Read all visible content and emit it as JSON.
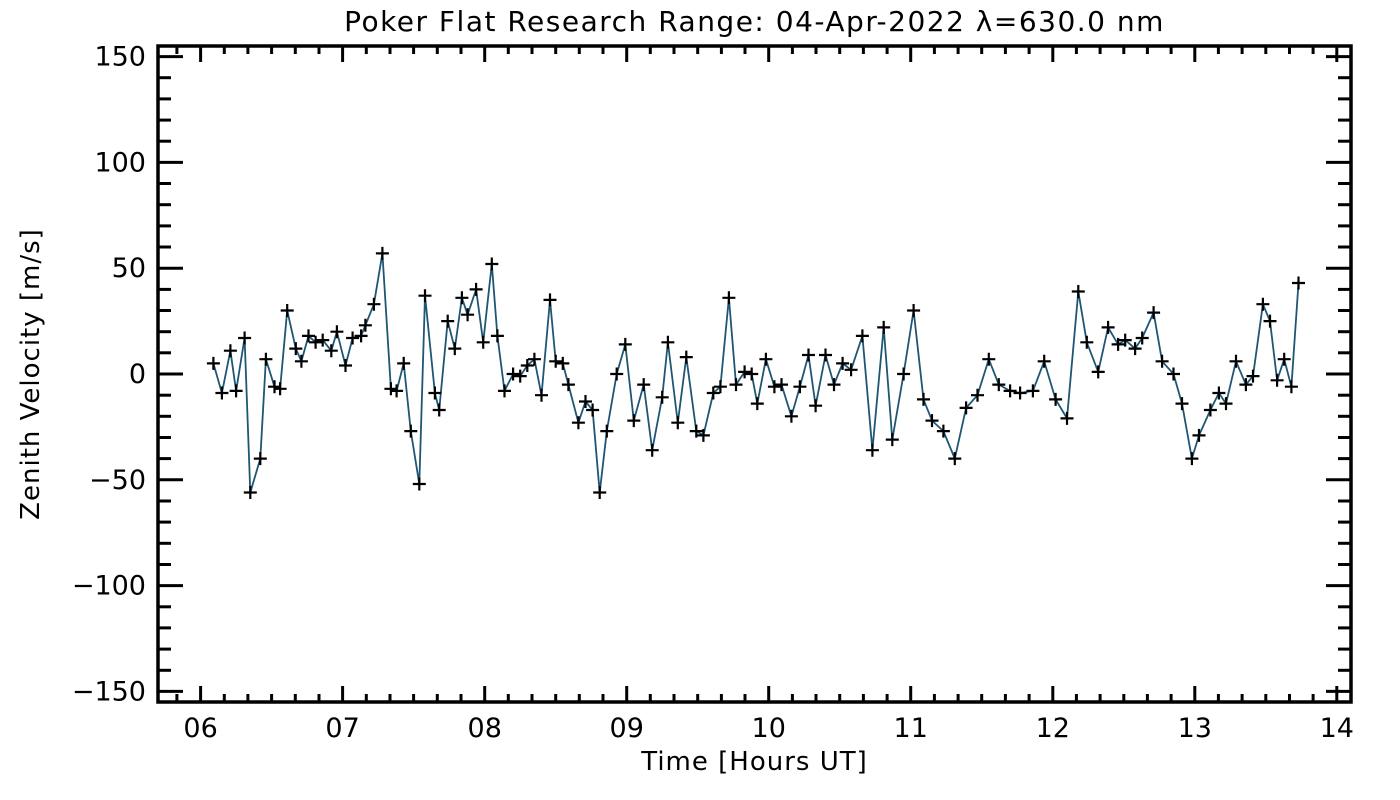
{
  "window": {
    "background": "#ffffff"
  },
  "chart_data": {
    "type": "line",
    "title": "Poker Flat Research Range: 04-Apr-2022 λ=630.0 nm",
    "xlabel": "Time [Hours UT]",
    "ylabel": "Zenith Velocity [m/s]",
    "xlim": [
      5.7,
      14.1
    ],
    "ylim": [
      -155,
      155
    ],
    "grid": false,
    "legend": "none",
    "marker": "plus",
    "x_ticks": {
      "values": [
        6,
        7,
        8,
        9,
        10,
        11,
        12,
        13,
        14
      ],
      "labels": [
        "06",
        "07",
        "08",
        "09",
        "10",
        "11",
        "12",
        "13",
        "14"
      ],
      "minor_per_hour": 6
    },
    "y_ticks": {
      "values": [
        150,
        100,
        50,
        0,
        -50,
        -100,
        -150
      ],
      "labels": [
        "150",
        "100",
        "50",
        "0",
        "−50",
        "−100",
        "−150"
      ],
      "minor_step": 10
    },
    "colors": {
      "line": "#1f5673",
      "marker": "#000000",
      "axis": "#000000",
      "text": "#000000",
      "background": "#ffffff"
    },
    "series": [
      {
        "name": "zenith-velocity",
        "x": [
          6.09,
          6.15,
          6.21,
          6.25,
          6.31,
          6.35,
          6.42,
          6.46,
          6.52,
          6.56,
          6.61,
          6.67,
          6.71,
          6.76,
          6.81,
          6.86,
          6.92,
          6.96,
          7.02,
          7.07,
          7.13,
          7.16,
          7.22,
          7.28,
          7.34,
          7.38,
          7.43,
          7.48,
          7.54,
          7.58,
          7.65,
          7.68,
          7.74,
          7.79,
          7.84,
          7.88,
          7.94,
          7.99,
          8.05,
          8.09,
          8.14,
          8.2,
          8.25,
          8.3,
          8.35,
          8.4,
          8.46,
          8.5,
          8.55,
          8.59,
          8.66,
          8.71,
          8.76,
          8.81,
          8.86,
          8.93,
          8.99,
          9.05,
          9.12,
          9.18,
          9.25,
          9.29,
          9.36,
          9.42,
          9.49,
          9.54,
          9.61,
          9.66,
          9.72,
          9.77,
          9.83,
          9.88,
          9.92,
          9.98,
          10.04,
          10.09,
          10.16,
          10.22,
          10.28,
          10.33,
          10.4,
          10.46,
          10.52,
          10.58,
          10.66,
          10.73,
          10.81,
          10.87,
          10.95,
          11.02,
          11.09,
          11.15,
          11.23,
          11.31,
          11.39,
          11.47,
          11.55,
          11.62,
          11.7,
          11.77,
          11.86,
          11.94,
          12.02,
          12.1,
          12.18,
          12.24,
          12.32,
          12.39,
          12.46,
          12.51,
          12.58,
          12.63,
          12.71,
          12.77,
          12.85,
          12.91,
          12.98,
          13.03,
          13.11,
          13.17,
          13.22,
          13.29,
          13.36,
          13.41,
          13.48,
          13.53,
          13.58,
          13.63,
          13.68,
          13.73
        ],
        "y": [
          5,
          -9,
          11,
          -8,
          17,
          -56,
          -40,
          7,
          -6,
          -7,
          30,
          12,
          6,
          18,
          15,
          16,
          11,
          20,
          4,
          17,
          18,
          23,
          33,
          57,
          -7,
          -8,
          5,
          -27,
          -52,
          37,
          -9,
          -17,
          25,
          12,
          36,
          28,
          40,
          15,
          52,
          18,
          -8,
          0,
          -1,
          4,
          7,
          -10,
          35,
          6,
          5,
          -5,
          -23,
          -13,
          -17,
          -56,
          -27,
          0,
          14,
          -22,
          -5,
          -36,
          -11,
          15,
          -23,
          8,
          -27,
          -29,
          -9,
          -6,
          36,
          -5,
          1,
          0,
          -14,
          7,
          -6,
          -5,
          -20,
          -6,
          9,
          -15,
          9,
          -5,
          5,
          2,
          18,
          -36,
          22,
          -31,
          0,
          30,
          -12,
          -22,
          -27,
          -40,
          -16,
          -10,
          7,
          -5,
          -8,
          -9,
          -8,
          6,
          -12,
          -21,
          39,
          15,
          1,
          22,
          14,
          16,
          12,
          17,
          29,
          6,
          0,
          -14,
          -40,
          -29,
          -17,
          -9,
          -14,
          6,
          -5,
          -1,
          33,
          25,
          -3,
          7,
          -6,
          43
        ]
      }
    ]
  }
}
